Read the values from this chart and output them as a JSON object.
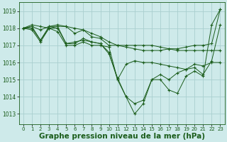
{
  "bg_color": "#ceeaea",
  "grid_color": "#aacfcf",
  "line_color": "#1a5c1a",
  "marker_color": "#1a5c1a",
  "xlabel": "Graphe pression niveau de la mer (hPa)",
  "xlabel_fontsize": 7.5,
  "yticks": [
    1013,
    1014,
    1015,
    1016,
    1017,
    1018,
    1019
  ],
  "xtick_labels": [
    "0",
    "1",
    "2",
    "3",
    "4",
    "5",
    "6",
    "7",
    "8",
    "9",
    "10",
    "11",
    "12",
    "13",
    "14",
    "15",
    "16",
    "17",
    "18",
    "19",
    "20",
    "21",
    "22",
    "23"
  ],
  "xlim": [
    -0.5,
    23.5
  ],
  "ylim": [
    1012.4,
    1019.5
  ],
  "series": [
    [
      1018.0,
      1018.2,
      1018.1,
      1018.0,
      1018.1,
      1018.1,
      1018.0,
      1017.9,
      1017.7,
      1017.5,
      1017.2,
      1017.0,
      1016.9,
      1016.8,
      1016.7,
      1016.7,
      1016.7,
      1016.8,
      1016.8,
      1016.9,
      1017.0,
      1017.0,
      1017.1,
      1019.1
    ],
    [
      1018.0,
      1018.1,
      1017.9,
      1018.1,
      1018.2,
      1018.1,
      1017.7,
      1017.9,
      1017.5,
      1017.4,
      1017.0,
      1017.0,
      1017.0,
      1017.0,
      1017.0,
      1017.0,
      1016.9,
      1016.8,
      1016.7,
      1016.7,
      1016.7,
      1016.7,
      1016.7,
      1016.7
    ],
    [
      1018.0,
      1017.9,
      1017.2,
      1018.0,
      1017.8,
      1017.0,
      1017.0,
      1017.2,
      1017.0,
      1017.0,
      1016.9,
      1015.0,
      1015.9,
      1016.1,
      1016.0,
      1016.0,
      1015.9,
      1015.8,
      1015.7,
      1015.6,
      1015.9,
      1015.8,
      1016.0,
      1016.0
    ],
    [
      1018.0,
      1018.0,
      1017.3,
      1018.1,
      1018.1,
      1017.1,
      1017.1,
      1017.4,
      1017.2,
      1017.1,
      1016.6,
      1015.0,
      1014.0,
      1013.6,
      1013.8,
      1015.0,
      1015.3,
      1015.0,
      1015.4,
      1015.6,
      1015.7,
      1015.3,
      1016.1,
      1018.2
    ],
    [
      1018.0,
      1018.1,
      1017.3,
      1018.0,
      1018.0,
      1017.1,
      1017.2,
      1017.3,
      1017.2,
      1017.1,
      1016.5,
      1015.1,
      1014.0,
      1013.0,
      1013.6,
      1015.0,
      1015.0,
      1014.4,
      1014.2,
      1015.2,
      1015.5,
      1015.2,
      1018.2,
      1019.1
    ]
  ]
}
